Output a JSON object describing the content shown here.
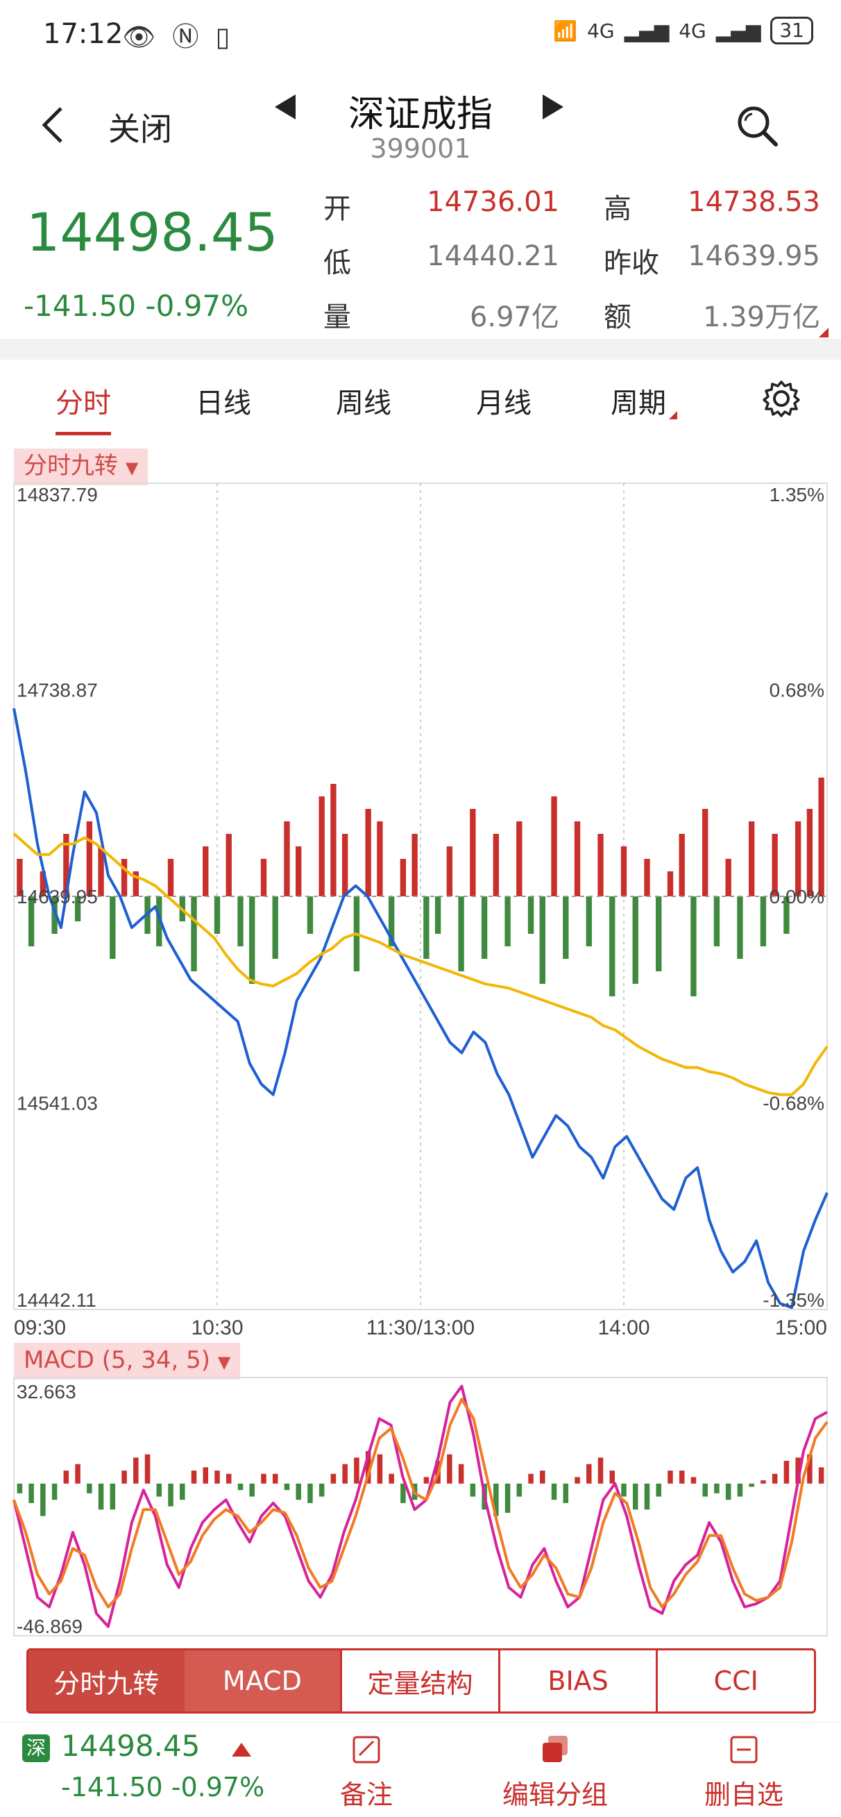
{
  "status_bar": {
    "time": "17:12",
    "network": "4G",
    "network2": "4G",
    "battery": "31"
  },
  "nav": {
    "close_label": "关闭",
    "title": "深证成指",
    "code": "399001"
  },
  "quote": {
    "price": "14498.45",
    "change": "-141.50 -0.97%",
    "open_label": "开",
    "open": "14736.01",
    "high_label": "高",
    "high": "14738.53",
    "low_label": "低",
    "low": "14440.21",
    "prev_close_label": "昨收",
    "prev_close": "14639.95",
    "volume_label": "量",
    "volume": "6.97亿",
    "amount_label": "额",
    "amount": "1.39万亿"
  },
  "period_tabs": [
    "分时",
    "日线",
    "周线",
    "月线",
    "周期"
  ],
  "indicator1_label": "分时九转",
  "indicator2_label": "MACD (5, 34, 5)",
  "bottom_indicator_tabs": [
    "分时九转",
    "MACD",
    "定量结构",
    "BIAS",
    "CCI"
  ],
  "footer": {
    "badge": "深",
    "price": "14498.45",
    "change": "-141.50 -0.97%",
    "actions": [
      "备注",
      "编辑分组",
      "删自选"
    ]
  },
  "chart_data": [
    {
      "type": "line",
      "title": "分时",
      "y_left_ticks": [
        "14837.79",
        "14738.87",
        "14639.95",
        "14541.03",
        "14442.11"
      ],
      "y_right_ticks": [
        "1.35%",
        "0.68%",
        "0.00%",
        "-0.68%",
        "-1.35%"
      ],
      "x_ticks": [
        "09:30",
        "10:30",
        "11:30/13:00",
        "14:00",
        "15:00"
      ],
      "ylim": [
        14442.11,
        14837.79
      ],
      "prev_close": 14639.95,
      "series": [
        {
          "name": "price",
          "color": "#1f5fd1",
          "values": [
            14730,
            14700,
            14665,
            14640,
            14625,
            14660,
            14690,
            14680,
            14650,
            14640,
            14625,
            14630,
            14635,
            14620,
            14610,
            14600,
            14595,
            14590,
            14585,
            14580,
            14560,
            14550,
            14545,
            14565,
            14590,
            14600,
            14610,
            14625,
            14640,
            14645,
            14640,
            14630,
            14620,
            14610,
            14600,
            14590,
            14580,
            14570,
            14565,
            14575,
            14570,
            14555,
            14545,
            14530,
            14515,
            14525,
            14535,
            14530,
            14520,
            14515,
            14505,
            14520,
            14525,
            14515,
            14505,
            14495,
            14490,
            14505,
            14510,
            14485,
            14470,
            14460,
            14465,
            14475,
            14455,
            14445,
            14443,
            14470,
            14485,
            14498
          ]
        },
        {
          "name": "avg",
          "color": "#f2b705",
          "values": [
            14670,
            14665,
            14660,
            14660,
            14665,
            14665,
            14668,
            14665,
            14660,
            14655,
            14650,
            14648,
            14645,
            14640,
            14635,
            14630,
            14625,
            14620,
            14612,
            14605,
            14600,
            14598,
            14597,
            14600,
            14603,
            14608,
            14612,
            14615,
            14620,
            14622,
            14620,
            14618,
            14615,
            14612,
            14610,
            14608,
            14606,
            14604,
            14602,
            14600,
            14598,
            14597,
            14596,
            14594,
            14592,
            14590,
            14588,
            14586,
            14584,
            14582,
            14578,
            14576,
            14572,
            14568,
            14565,
            14562,
            14560,
            14558,
            14558,
            14556,
            14555,
            14553,
            14550,
            14548,
            14546,
            14545,
            14545,
            14550,
            14560,
            14568
          ]
        }
      ],
      "volume_values": [
        0.3,
        -0.4,
        0.2,
        -0.3,
        0.5,
        -0.2,
        0.6,
        0.4,
        -0.5,
        0.3,
        0.2,
        -0.3,
        -0.4,
        0.3,
        -0.2,
        -0.6,
        0.4,
        -0.3,
        0.5,
        -0.4,
        -0.7,
        0.3,
        -0.5,
        0.6,
        0.4,
        -0.3,
        0.8,
        0.9,
        0.5,
        -0.6,
        0.7,
        0.6,
        -0.4,
        0.3,
        0.5,
        -0.5,
        -0.3,
        0.4,
        -0.6,
        0.7,
        -0.5,
        0.5,
        -0.4,
        0.6,
        -0.3,
        -0.7,
        0.8,
        -0.5,
        0.6,
        -0.4,
        0.5,
        -0.8,
        0.4,
        -0.7,
        0.3,
        -0.6,
        0.2,
        0.5,
        -0.8,
        0.7,
        -0.4,
        0.3,
        -0.5,
        0.6,
        -0.4,
        0.5,
        -0.3,
        0.6,
        0.7,
        0.95
      ]
    },
    {
      "type": "bar",
      "title": "MACD (5, 34, 5)",
      "y_ticks": [
        "32.663",
        "-46.869"
      ],
      "ylim": [
        -46.869,
        32.663
      ],
      "series": [
        {
          "name": "MACD",
          "color": "#d6239a",
          "values": [
            -5,
            -20,
            -35,
            -38,
            -28,
            -15,
            -25,
            -40,
            -44,
            -30,
            -12,
            -2,
            -10,
            -25,
            -32,
            -20,
            -12,
            -8,
            -5,
            -12,
            -18,
            -10,
            -6,
            -10,
            -20,
            -30,
            -35,
            -28,
            -15,
            -5,
            8,
            20,
            18,
            2,
            -8,
            -5,
            8,
            25,
            30,
            15,
            -5,
            -20,
            -32,
            -35,
            -25,
            -20,
            -30,
            -38,
            -35,
            -20,
            -5,
            0,
            -10,
            -25,
            -38,
            -40,
            -30,
            -25,
            -22,
            -12,
            -18,
            -30,
            -38,
            -37,
            -35,
            -30,
            -10,
            10,
            20,
            22
          ]
        },
        {
          "name": "signal",
          "color": "#f07b24",
          "values": [
            -5,
            -15,
            -28,
            -34,
            -30,
            -20,
            -22,
            -32,
            -38,
            -34,
            -20,
            -8,
            -8,
            -18,
            -28,
            -24,
            -16,
            -11,
            -8,
            -10,
            -15,
            -12,
            -8,
            -9,
            -16,
            -26,
            -32,
            -30,
            -20,
            -10,
            2,
            14,
            17,
            8,
            -3,
            -5,
            3,
            18,
            26,
            20,
            4,
            -12,
            -26,
            -32,
            -28,
            -22,
            -26,
            -34,
            -35,
            -26,
            -12,
            -3,
            -6,
            -18,
            -32,
            -38,
            -34,
            -28,
            -24,
            -16,
            -16,
            -26,
            -34,
            -36,
            -35,
            -32,
            -18,
            2,
            14,
            19
          ]
        }
      ],
      "histogram": [
        -3,
        -6,
        -10,
        -5,
        4,
        6,
        -3,
        -8,
        -8,
        4,
        8,
        9,
        -4,
        -7,
        -5,
        4,
        5,
        4,
        3,
        -2,
        -4,
        3,
        3,
        -2,
        -5,
        -6,
        -4,
        3,
        6,
        8,
        10,
        9,
        3,
        -6,
        -5,
        2,
        7,
        9,
        6,
        -4,
        -8,
        -10,
        -9,
        -4,
        3,
        4,
        -5,
        -6,
        2,
        6,
        8,
        4,
        -4,
        -8,
        -8,
        -4,
        4,
        4,
        2,
        -4,
        -3,
        -5,
        -4,
        -1,
        1,
        3,
        7,
        8,
        9,
        5
      ]
    }
  ]
}
